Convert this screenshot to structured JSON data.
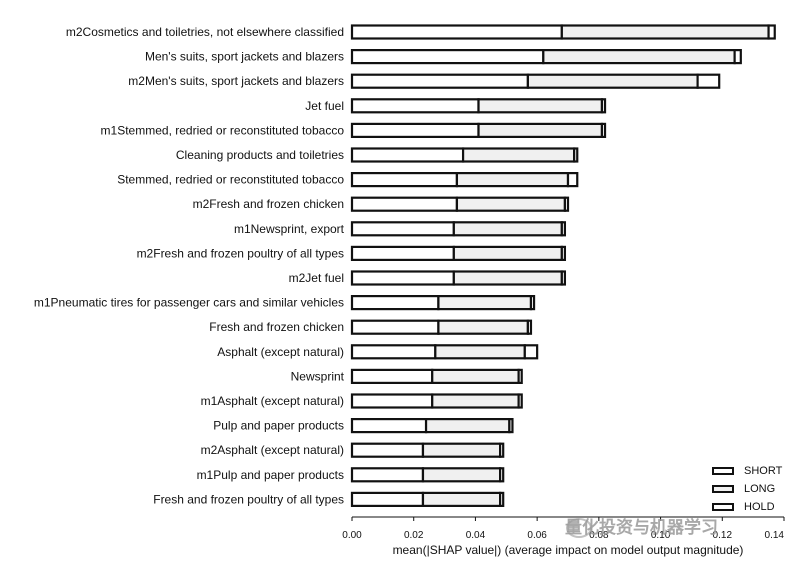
{
  "chart_data": {
    "type": "bar",
    "orientation": "horizontal",
    "stacked": true,
    "xlabel": "mean(|SHAP value|) (average impact on model output magnitude)",
    "xlim": [
      0,
      0.14
    ],
    "xticks": [
      "0.00",
      "0.02",
      "0.04",
      "0.06",
      "0.08",
      "0.10",
      "0.12",
      "0.14"
    ],
    "categories": [
      "m2Cosmetics and toiletries, not elsewhere classified",
      "Men's suits, sport jackets and blazers",
      "m2Men's suits, sport jackets and blazers",
      "Jet fuel",
      "m1Stemmed, redried or reconstituted tobacco",
      "Cleaning products and toiletries",
      "Stemmed, redried or reconstituted tobacco",
      "m2Fresh and frozen chicken",
      "m1Newsprint, export",
      "m2Fresh and frozen poultry of all types",
      "m2Jet fuel",
      "m1Pneumatic tires for passenger cars and similar vehicles",
      "Fresh and frozen chicken",
      "Asphalt (except natural)",
      "Newsprint",
      "m1Asphalt (except natural)",
      "Pulp and paper products",
      "m2Asphalt (except natural)",
      "m1Pulp and paper products",
      "Fresh and frozen poultry of all types"
    ],
    "series": [
      {
        "name": "SHORT",
        "values": [
          0.068,
          0.062,
          0.057,
          0.041,
          0.041,
          0.036,
          0.034,
          0.034,
          0.033,
          0.033,
          0.033,
          0.028,
          0.028,
          0.027,
          0.026,
          0.026,
          0.024,
          0.023,
          0.023,
          0.023
        ]
      },
      {
        "name": "LONG",
        "values": [
          0.067,
          0.062,
          0.055,
          0.04,
          0.04,
          0.036,
          0.036,
          0.035,
          0.035,
          0.035,
          0.035,
          0.03,
          0.029,
          0.029,
          0.028,
          0.028,
          0.027,
          0.025,
          0.025,
          0.025
        ]
      },
      {
        "name": "HOLD",
        "values": [
          0.002,
          0.002,
          0.007,
          0.001,
          0.001,
          0.001,
          0.003,
          0.001,
          0.001,
          0.001,
          0.001,
          0.001,
          0.001,
          0.004,
          0.001,
          0.001,
          0.001,
          0.001,
          0.001,
          0.001
        ]
      }
    ],
    "legend_position": "bottom-right",
    "grid": false
  },
  "watermark": "量化投资与机器学习"
}
